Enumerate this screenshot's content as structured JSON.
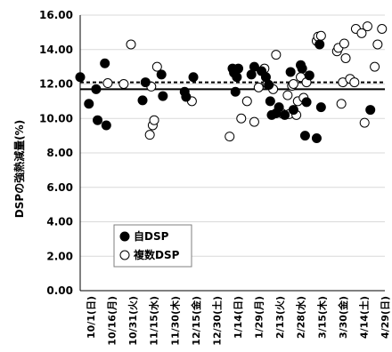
{
  "chart_data": {
    "type": "scatter",
    "ylabel": "DSPの強熱減量(%)",
    "ylim": [
      0,
      16
    ],
    "yticks": [
      "0.00",
      "2.00",
      "4.00",
      "6.00",
      "8.00",
      "10.00",
      "12.00",
      "14.00",
      "16.00"
    ],
    "xticks": [
      "10/1(日)",
      "10/16(月)",
      "10/31(火)",
      "11/15(水)",
      "11/30(木)",
      "12/15(金)",
      "12/30(土)",
      "1/14(日)",
      "1/29(月)",
      "2/13(火)",
      "2/28(水)",
      "3/15(木)",
      "3/30(金)",
      "4/14(土)",
      "4/29(日)"
    ],
    "grid": "horizontal",
    "legend_position": "bottom-left",
    "reference_lines": [
      {
        "style": "solid",
        "y": 11.7
      },
      {
        "style": "dashed",
        "y": 12.1
      }
    ],
    "series": [
      {
        "name": "自DSP",
        "marker": "filled-circle",
        "color": "#000000",
        "points": [
          [
            "10/1",
            12.4
          ],
          [
            "10/7",
            10.85
          ],
          [
            "10/12",
            11.7
          ],
          [
            "10/13",
            9.9
          ],
          [
            "10/18",
            13.2
          ],
          [
            "10/19",
            9.6
          ],
          [
            "11/13",
            11.05
          ],
          [
            "11/15",
            12.1
          ],
          [
            "11/26",
            12.55
          ],
          [
            "11/27",
            11.3
          ],
          [
            "12/12",
            11.55
          ],
          [
            "12/13",
            11.25
          ],
          [
            "12/18",
            12.4
          ],
          [
            "1/14",
            12.9
          ],
          [
            "1/15",
            12.65
          ],
          [
            "1/16",
            11.55
          ],
          [
            "1/17",
            12.4
          ],
          [
            "1/18",
            12.9
          ],
          [
            "1/27",
            12.55
          ],
          [
            "1/29",
            13.0
          ],
          [
            "2/3",
            12.75
          ],
          [
            "2/6",
            12.4
          ],
          [
            "2/8",
            11.95
          ],
          [
            "2/9",
            11.0
          ],
          [
            "2/10",
            10.2
          ],
          [
            "2/13",
            10.3
          ],
          [
            "2/15",
            10.65
          ],
          [
            "2/19",
            10.2
          ],
          [
            "2/23",
            12.7
          ],
          [
            "2/25",
            10.5
          ],
          [
            "3/2",
            13.1
          ],
          [
            "3/3",
            12.9
          ],
          [
            "3/5",
            9.0
          ],
          [
            "3/6",
            10.95
          ],
          [
            "3/8",
            12.5
          ],
          [
            "3/13",
            8.85
          ],
          [
            "3/15",
            14.3
          ],
          [
            "3/16",
            10.65
          ],
          [
            "4/19",
            10.5
          ]
        ]
      },
      {
        "name": "複数DSP",
        "marker": "open-circle",
        "color": "#000000",
        "points": [
          [
            "10/20",
            12.05
          ],
          [
            "10/31",
            12.0
          ],
          [
            "11/5",
            14.3
          ],
          [
            "11/18",
            9.05
          ],
          [
            "11/19",
            11.85
          ],
          [
            "11/20",
            9.6
          ],
          [
            "11/21",
            9.9
          ],
          [
            "11/23",
            13.0
          ],
          [
            "12/17",
            11.0
          ],
          [
            "1/12",
            8.95
          ],
          [
            "1/20",
            10.0
          ],
          [
            "1/24",
            11.0
          ],
          [
            "1/29",
            9.8
          ],
          [
            "2/1",
            11.8
          ],
          [
            "2/5",
            12.9
          ],
          [
            "2/7",
            12.0
          ],
          [
            "2/11",
            11.7
          ],
          [
            "2/13",
            13.7
          ],
          [
            "2/17",
            10.3
          ],
          [
            "2/21",
            11.35
          ],
          [
            "2/22",
            10.25
          ],
          [
            "2/24",
            11.9
          ],
          [
            "2/25",
            12.0
          ],
          [
            "2/27",
            10.2
          ],
          [
            "2/28",
            11.0
          ],
          [
            "3/2",
            12.4
          ],
          [
            "3/4",
            11.2
          ],
          [
            "3/6",
            12.1
          ],
          [
            "3/13",
            14.5
          ],
          [
            "3/14",
            14.75
          ],
          [
            "3/16",
            14.8
          ],
          [
            "3/27",
            13.9
          ],
          [
            "3/28",
            14.1
          ],
          [
            "3/30",
            10.85
          ],
          [
            "3/31",
            12.1
          ],
          [
            "4/1",
            14.35
          ],
          [
            "4/2",
            13.5
          ],
          [
            "4/5",
            12.3
          ],
          [
            "4/8",
            12.1
          ],
          [
            "4/9",
            15.2
          ],
          [
            "4/13",
            14.95
          ],
          [
            "4/15",
            9.75
          ],
          [
            "4/17",
            15.35
          ],
          [
            "4/22",
            13.0
          ],
          [
            "4/24",
            14.3
          ],
          [
            "4/27",
            15.2
          ]
        ]
      }
    ]
  }
}
